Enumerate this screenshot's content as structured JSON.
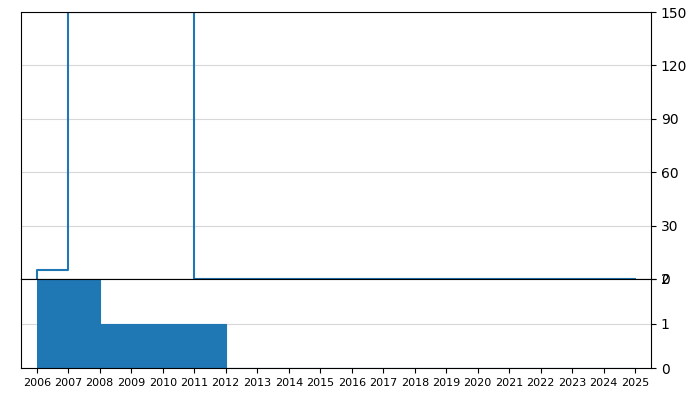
{
  "chart_data": [
    {
      "type": "step",
      "x": [
        2006,
        2006,
        2007,
        2010,
        2011,
        2025
      ],
      "values": [
        0,
        5,
        150,
        150,
        0,
        0
      ],
      "xlim": [
        2005.5,
        2025.5
      ],
      "ylim": [
        0,
        150
      ],
      "yticks": [
        0,
        30,
        60,
        90,
        120,
        150
      ],
      "grid": true,
      "tick_labels": "y"
    },
    {
      "type": "steparea",
      "x": [
        2006,
        2008,
        2012,
        2025
      ],
      "values": [
        2,
        1,
        0,
        0
      ],
      "xlim": [
        2005.5,
        2025.5
      ],
      "xticks": [
        2006,
        2007,
        2008,
        2009,
        2010,
        2011,
        2012,
        2013,
        2014,
        2015,
        2016,
        2017,
        2018,
        2019,
        2020,
        2021,
        2022,
        2023,
        2024,
        2025
      ],
      "ylim": [
        0,
        2
      ],
      "yticks": [
        0,
        1,
        2
      ],
      "grid": true
    }
  ]
}
